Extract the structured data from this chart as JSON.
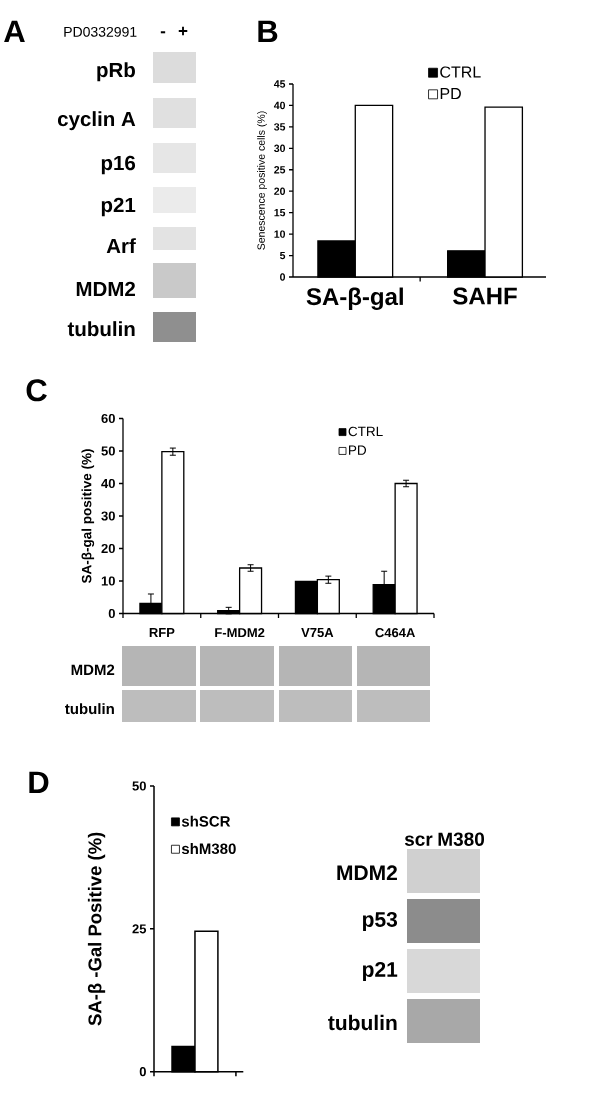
{
  "chart_data": [
    {
      "type": "other",
      "title": "A",
      "annotations": [
        "PD0332991",
        "-",
        "+",
        "pRb",
        "cyclin A",
        "p16",
        "p21",
        "Arf",
        "MDM2",
        "tubulin"
      ]
    },
    {
      "type": "bar",
      "title": "B",
      "categories": [
        "SA-β-gal",
        "SAHF"
      ],
      "series": [
        {
          "name": "CTRL",
          "color": "#000000",
          "values": [
            8.4,
            6.1
          ]
        },
        {
          "name": "PD",
          "color": "#ffffff",
          "values": [
            40.0,
            39.6
          ]
        }
      ],
      "ylabel": "Senescence positive cells (%)",
      "ylim": [
        0,
        45
      ],
      "yticks": [
        0,
        5,
        10,
        15,
        20,
        25,
        30,
        35,
        40,
        45
      ],
      "legend": "top"
    },
    {
      "type": "bar",
      "title": "C",
      "categories": [
        "RFP",
        "F-MDM2",
        "V75A",
        "C464A"
      ],
      "series": [
        {
          "name": "CTRL",
          "color": "#000000",
          "values": [
            3.1,
            0.9,
            9.9,
            8.9
          ],
          "errors": [
            2.9,
            1.0,
            null,
            4.1
          ]
        },
        {
          "name": "PD",
          "color": "#ffffff",
          "values": [
            49.8,
            14.0,
            10.4,
            40.0
          ],
          "errors": [
            1.1,
            1.0,
            1.1,
            1.0
          ]
        }
      ],
      "ylabel": "SA-β-gal positive (%)",
      "ylim": [
        0,
        60
      ],
      "yticks": [
        0,
        10,
        20,
        30,
        40,
        50,
        60
      ],
      "legend": "top right",
      "annotations": [
        "MDM2",
        "tubulin"
      ]
    },
    {
      "type": "bar",
      "title": "D",
      "categories": [
        null
      ],
      "series": [
        {
          "name": "shSCR",
          "color": "#000000",
          "values": [
            4.4
          ]
        },
        {
          "name": "shM380",
          "color": "#ffffff",
          "values": [
            24.6
          ]
        }
      ],
      "ylabel": "SA-β -Gal Positive (%)",
      "ylim": [
        0,
        50
      ],
      "yticks": [
        0,
        25,
        50
      ],
      "legend": "top"
    },
    {
      "type": "other",
      "annotations": [
        "scr",
        "M380",
        "MDM2",
        "p53",
        "p21",
        "tubulin"
      ]
    }
  ]
}
